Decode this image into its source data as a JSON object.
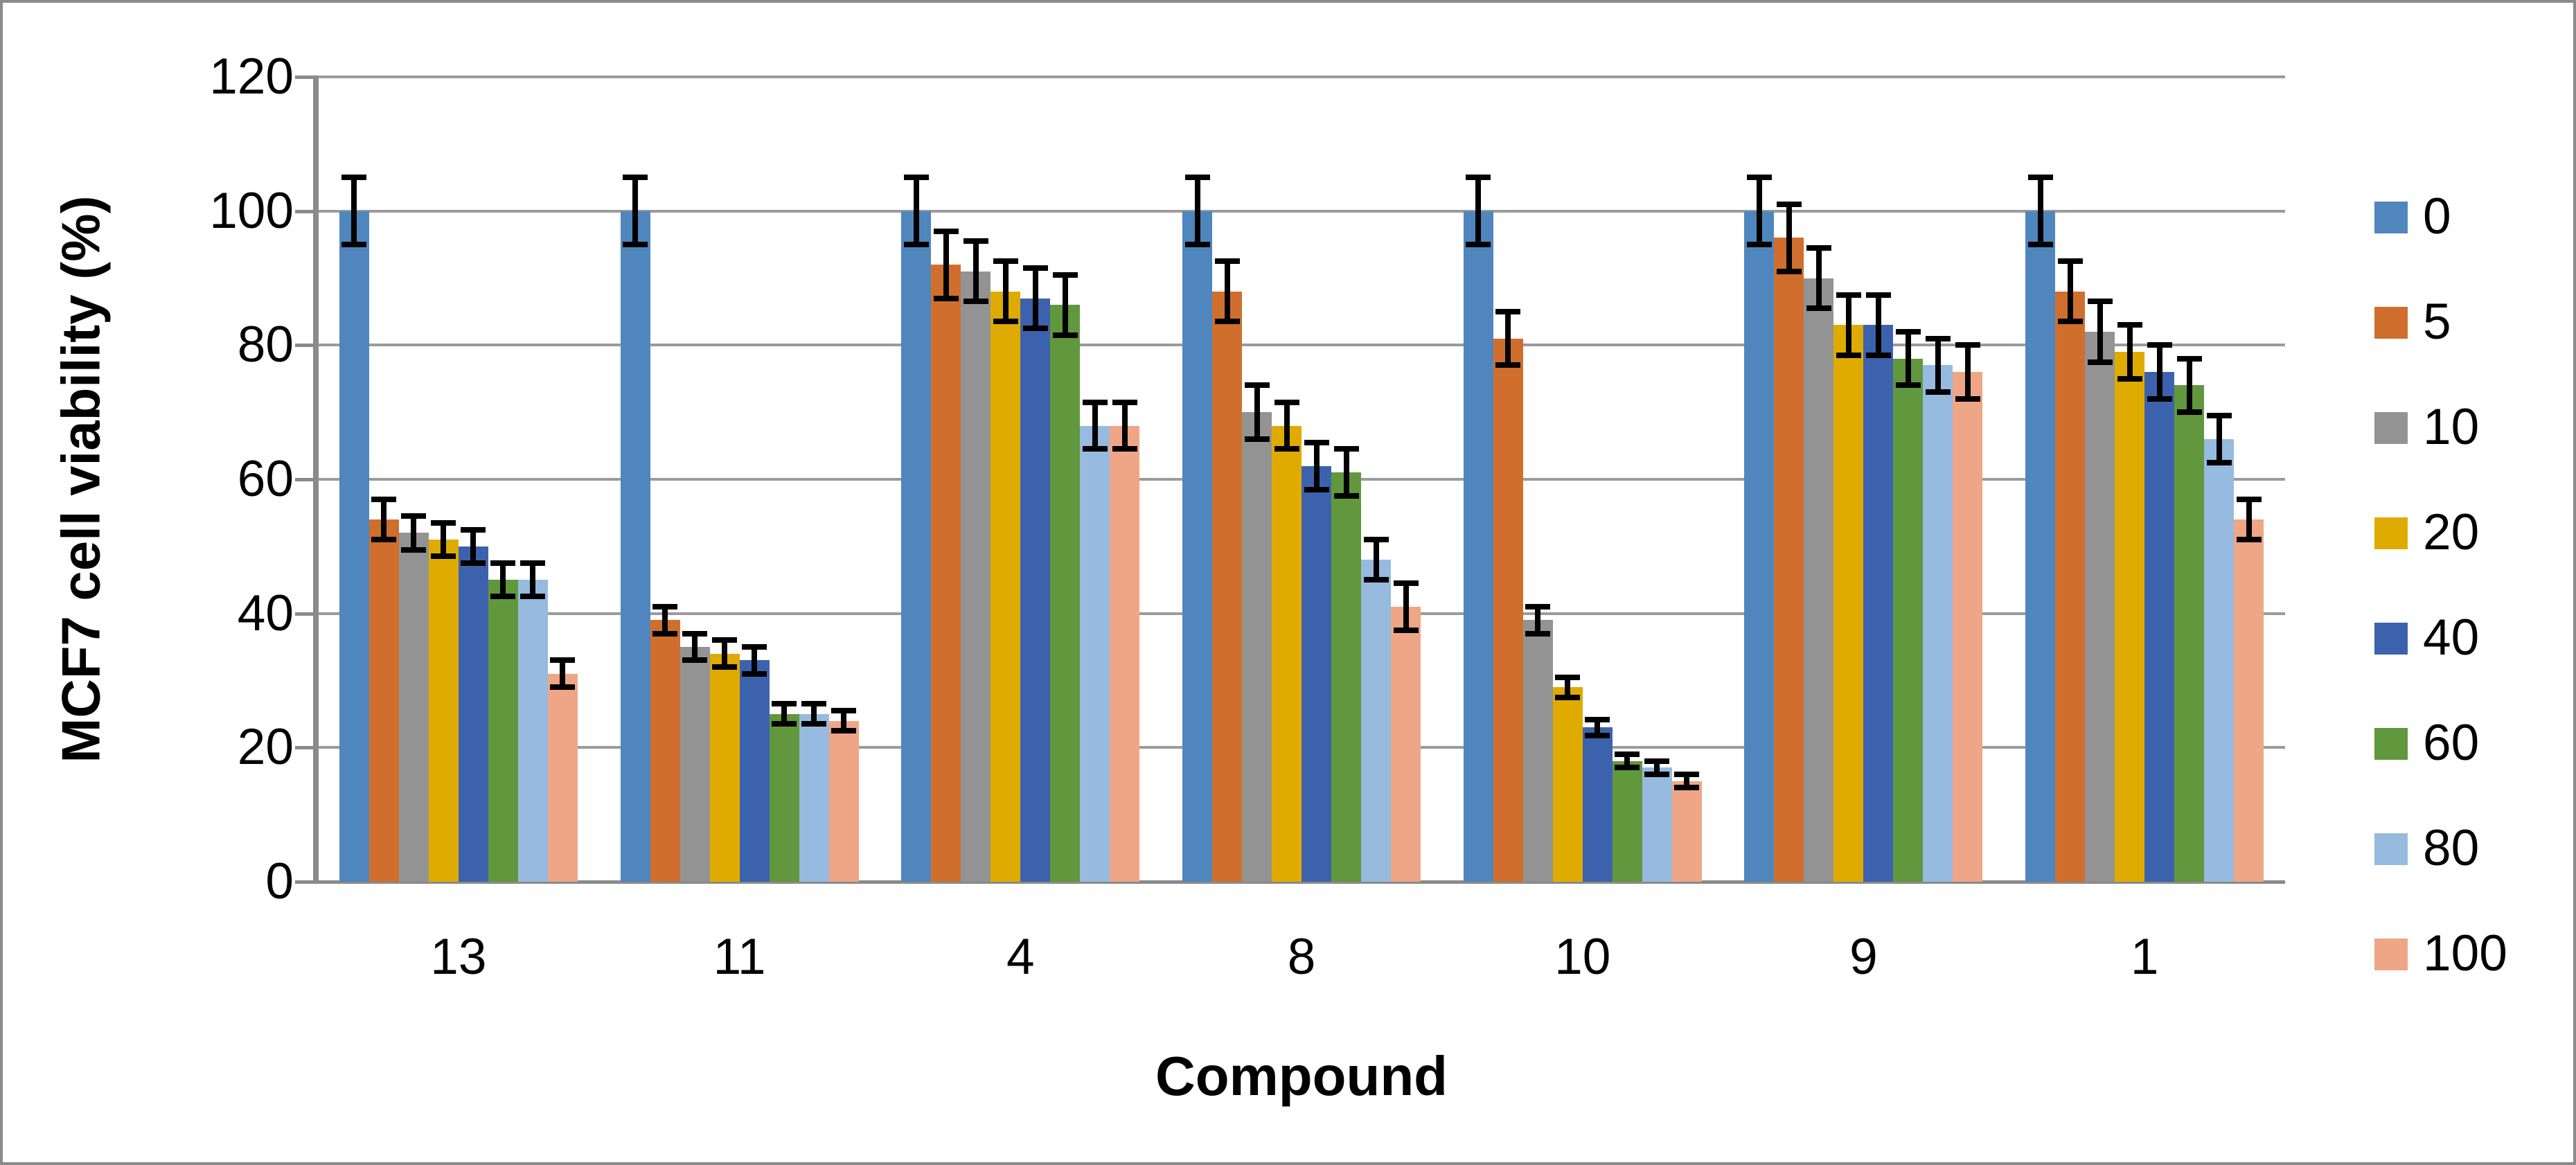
{
  "chart_data": {
    "type": "bar",
    "title": "",
    "xlabel": "Compound",
    "ylabel": "MCF7 cell viability (%)",
    "ylim": [
      0,
      120
    ],
    "ytick_step": 20,
    "yticks": [
      0,
      20,
      40,
      60,
      80,
      100,
      120
    ],
    "grid": true,
    "legend_position": "right",
    "has_error_bars": true,
    "categories": [
      "13",
      "11",
      "4",
      "8",
      "10",
      "9",
      "1"
    ],
    "series": [
      {
        "name": "0",
        "color": "#4F86BE",
        "values": [
          100,
          100,
          100,
          100,
          100,
          100,
          100
        ],
        "errors": [
          5,
          5,
          5,
          5,
          5,
          5,
          5
        ]
      },
      {
        "name": "5",
        "color": "#D06F2D",
        "values": [
          54,
          39,
          92,
          88,
          81,
          96,
          88
        ],
        "errors": [
          3,
          2,
          5,
          4.5,
          4,
          5,
          4.5
        ]
      },
      {
        "name": "10",
        "color": "#939393",
        "values": [
          52,
          35,
          91,
          70,
          39,
          90,
          82
        ],
        "errors": [
          2.5,
          2,
          4.5,
          4,
          2,
          4.5,
          4.5
        ]
      },
      {
        "name": "20",
        "color": "#E0AB00",
        "values": [
          51,
          34,
          88,
          68,
          29,
          83,
          79
        ],
        "errors": [
          2.5,
          2,
          4.5,
          3.5,
          1.5,
          4.5,
          4
        ]
      },
      {
        "name": "40",
        "color": "#3D62AD",
        "values": [
          50,
          33,
          87,
          62,
          23,
          83,
          76
        ],
        "errors": [
          2.5,
          2,
          4.5,
          3.5,
          1.2,
          4.5,
          4
        ]
      },
      {
        "name": "60",
        "color": "#61973D",
        "values": [
          45,
          25,
          86,
          61,
          18,
          78,
          74
        ],
        "errors": [
          2.5,
          1.5,
          4.5,
          3.5,
          1,
          4,
          4
        ]
      },
      {
        "name": "80",
        "color": "#97BADF",
        "values": [
          45,
          25,
          68,
          48,
          17,
          77,
          66
        ],
        "errors": [
          2.5,
          1.5,
          3.5,
          3,
          1,
          4,
          3.5
        ]
      },
      {
        "name": "100",
        "color": "#EFA687",
        "values": [
          31,
          24,
          68,
          41,
          15,
          76,
          54
        ],
        "errors": [
          2,
          1.5,
          3.5,
          3.5,
          1,
          4,
          3
        ]
      }
    ]
  },
  "colors": {
    "gridline": "#9B9B9B",
    "axis": "#8A8A8A",
    "error_bar": "#000000",
    "text": "#000000",
    "background": "#FFFFFF",
    "figure_border": "#8A8A8A"
  }
}
